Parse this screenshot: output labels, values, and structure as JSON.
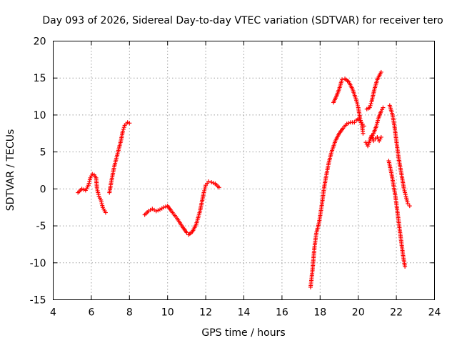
{
  "chart_data": {
    "type": "scatter",
    "title": "Day 093 of 2026, Sidereal Day-to-day VTEC variation (SDTVAR) for receiver tero",
    "xlabel": "GPS time / hours",
    "ylabel": "SDTVAR / TECUs",
    "xlim": [
      4,
      24
    ],
    "ylim": [
      -15,
      20
    ],
    "xticks": [
      4,
      6,
      8,
      10,
      12,
      14,
      16,
      18,
      20,
      22,
      24
    ],
    "yticks": [
      -15,
      -10,
      -5,
      0,
      5,
      10,
      15,
      20
    ],
    "grid": true,
    "marker": "+",
    "colors": {
      "series": "#ff0000",
      "grid": "#a0a0a0",
      "axes": "#000000"
    },
    "series": [
      {
        "values": [
          [
            5.3,
            -0.5
          ],
          [
            5.5,
            0
          ],
          [
            5.7,
            -0.2
          ],
          [
            5.85,
            0.5
          ],
          [
            5.95,
            1.5
          ],
          [
            6.05,
            2.0
          ],
          [
            6.15,
            1.9
          ],
          [
            6.25,
            1.5
          ],
          [
            6.3,
            0
          ],
          [
            6.4,
            -1.0
          ],
          [
            6.5,
            -1.5
          ],
          [
            6.6,
            -2.5
          ],
          [
            6.75,
            -3.2
          ]
        ]
      },
      {
        "values": [
          [
            6.95,
            -0.5
          ],
          [
            7.05,
            1.0
          ],
          [
            7.2,
            3.0
          ],
          [
            7.4,
            5.0
          ],
          [
            7.55,
            6.5
          ],
          [
            7.65,
            7.8
          ],
          [
            7.75,
            8.6
          ],
          [
            7.9,
            9.0
          ],
          [
            8.0,
            8.9
          ]
        ]
      },
      {
        "values": [
          [
            8.8,
            -3.5
          ],
          [
            9.0,
            -3.0
          ],
          [
            9.2,
            -2.7
          ],
          [
            9.4,
            -3.0
          ],
          [
            9.6,
            -2.8
          ],
          [
            9.8,
            -2.5
          ],
          [
            10.0,
            -2.3
          ],
          [
            10.2,
            -3.0
          ],
          [
            10.5,
            -4.0
          ],
          [
            10.8,
            -5.2
          ],
          [
            11.0,
            -5.9
          ],
          [
            11.1,
            -6.2
          ],
          [
            11.3,
            -5.8
          ],
          [
            11.5,
            -4.8
          ],
          [
            11.7,
            -3.0
          ],
          [
            11.9,
            -0.5
          ],
          [
            12.0,
            0.5
          ],
          [
            12.15,
            1.0
          ],
          [
            12.3,
            0.9
          ],
          [
            12.5,
            0.7
          ],
          [
            12.7,
            0.2
          ]
        ]
      },
      {
        "values": [
          [
            17.5,
            -13.3
          ],
          [
            17.6,
            -11.0
          ],
          [
            17.7,
            -8.0
          ],
          [
            17.8,
            -6.0
          ],
          [
            17.95,
            -4.5
          ],
          [
            18.1,
            -2.0
          ],
          [
            18.2,
            0
          ],
          [
            18.3,
            1.5
          ],
          [
            18.45,
            3.5
          ],
          [
            18.6,
            5.0
          ],
          [
            18.8,
            6.5
          ],
          [
            19.0,
            7.5
          ],
          [
            19.2,
            8.2
          ],
          [
            19.4,
            8.8
          ],
          [
            19.6,
            9.0
          ],
          [
            19.8,
            9.0
          ],
          [
            19.9,
            9.3
          ],
          [
            20.05,
            9.5
          ],
          [
            20.15,
            9.0
          ],
          [
            20.3,
            8.5
          ]
        ]
      },
      {
        "values": [
          [
            18.7,
            11.7
          ],
          [
            18.85,
            12.5
          ],
          [
            19.0,
            13.5
          ],
          [
            19.15,
            14.8
          ],
          [
            19.3,
            14.9
          ],
          [
            19.5,
            14.5
          ],
          [
            19.7,
            13.5
          ],
          [
            19.9,
            12.0
          ],
          [
            20.0,
            11.0
          ],
          [
            20.1,
            9.5
          ],
          [
            20.2,
            8.5
          ],
          [
            20.25,
            7.5
          ]
        ]
      },
      {
        "values": [
          [
            20.45,
            10.8
          ],
          [
            20.6,
            11.0
          ],
          [
            20.7,
            11.8
          ],
          [
            20.85,
            13.5
          ],
          [
            21.0,
            14.8
          ],
          [
            21.2,
            15.8
          ]
        ]
      },
      {
        "values": [
          [
            20.4,
            6.3
          ],
          [
            20.5,
            5.8
          ],
          [
            20.6,
            6.5
          ],
          [
            20.7,
            7.2
          ],
          [
            20.8,
            6.5
          ],
          [
            20.9,
            6.8
          ],
          [
            21.0,
            7.0
          ],
          [
            21.1,
            6.5
          ],
          [
            21.2,
            7.0
          ]
        ]
      },
      {
        "values": [
          [
            20.65,
            6.8
          ],
          [
            20.8,
            7.5
          ],
          [
            20.95,
            8.5
          ],
          [
            21.05,
            9.5
          ],
          [
            21.2,
            10.5
          ],
          [
            21.3,
            11.0
          ]
        ]
      },
      {
        "values": [
          [
            21.65,
            11.3
          ],
          [
            21.8,
            10.0
          ],
          [
            21.9,
            8.5
          ],
          [
            22.0,
            6.5
          ],
          [
            22.1,
            4.5
          ],
          [
            22.2,
            3.0
          ],
          [
            22.3,
            1.5
          ],
          [
            22.4,
            0
          ],
          [
            22.5,
            -1.0
          ],
          [
            22.6,
            -2.0
          ],
          [
            22.7,
            -2.3
          ]
        ]
      },
      {
        "values": [
          [
            21.6,
            3.8
          ],
          [
            21.75,
            2.0
          ],
          [
            21.85,
            0.5
          ],
          [
            21.95,
            -1.0
          ],
          [
            22.05,
            -3.0
          ],
          [
            22.15,
            -5.0
          ],
          [
            22.25,
            -7.0
          ],
          [
            22.35,
            -9.0
          ],
          [
            22.45,
            -10.5
          ]
        ]
      }
    ]
  }
}
